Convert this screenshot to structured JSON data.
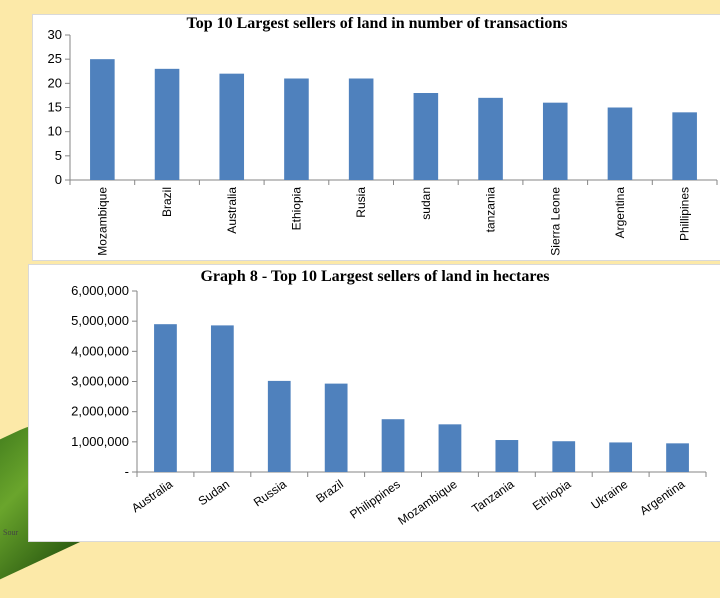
{
  "corner_text": "Sour",
  "chart_data": [
    {
      "type": "bar",
      "title": "Top 10 Largest sellers of land in number of transactions",
      "categories": [
        "Mozambique",
        "Brazil",
        "Australia",
        "Ethiopia",
        "Rusia",
        "sudan",
        "tanzania",
        "Sierra Leone",
        "Argentina",
        "Phillipines"
      ],
      "values": [
        25,
        23,
        22,
        21,
        21,
        18,
        17,
        16,
        15,
        14
      ],
      "yticks": [
        "0",
        "5",
        "10",
        "15",
        "20",
        "25",
        "30"
      ],
      "ylim": [
        0,
        30
      ],
      "grid": false,
      "color": "#4f81bd",
      "xlabel": "",
      "ylabel": ""
    },
    {
      "type": "bar",
      "title": "Graph 8 -  Top 10 Largest sellers of land in hectares",
      "categories": [
        "Australia",
        "Sudan",
        "Russia",
        "Brazil",
        "Philippines",
        "Mozambique",
        "Tanzania",
        "Ethiopia",
        "Ukraine",
        "Argentina"
      ],
      "values": [
        4900000,
        4860000,
        3020000,
        2930000,
        1750000,
        1580000,
        1060000,
        1020000,
        980000,
        950000
      ],
      "yticks": [
        "-",
        "1,000,000",
        "2,000,000",
        "3,000,000",
        "4,000,000",
        "5,000,000",
        "6,000,000"
      ],
      "ylim": [
        0,
        6000000
      ],
      "grid": false,
      "color": "#4f81bd",
      "xlabel": "",
      "ylabel": ""
    }
  ]
}
